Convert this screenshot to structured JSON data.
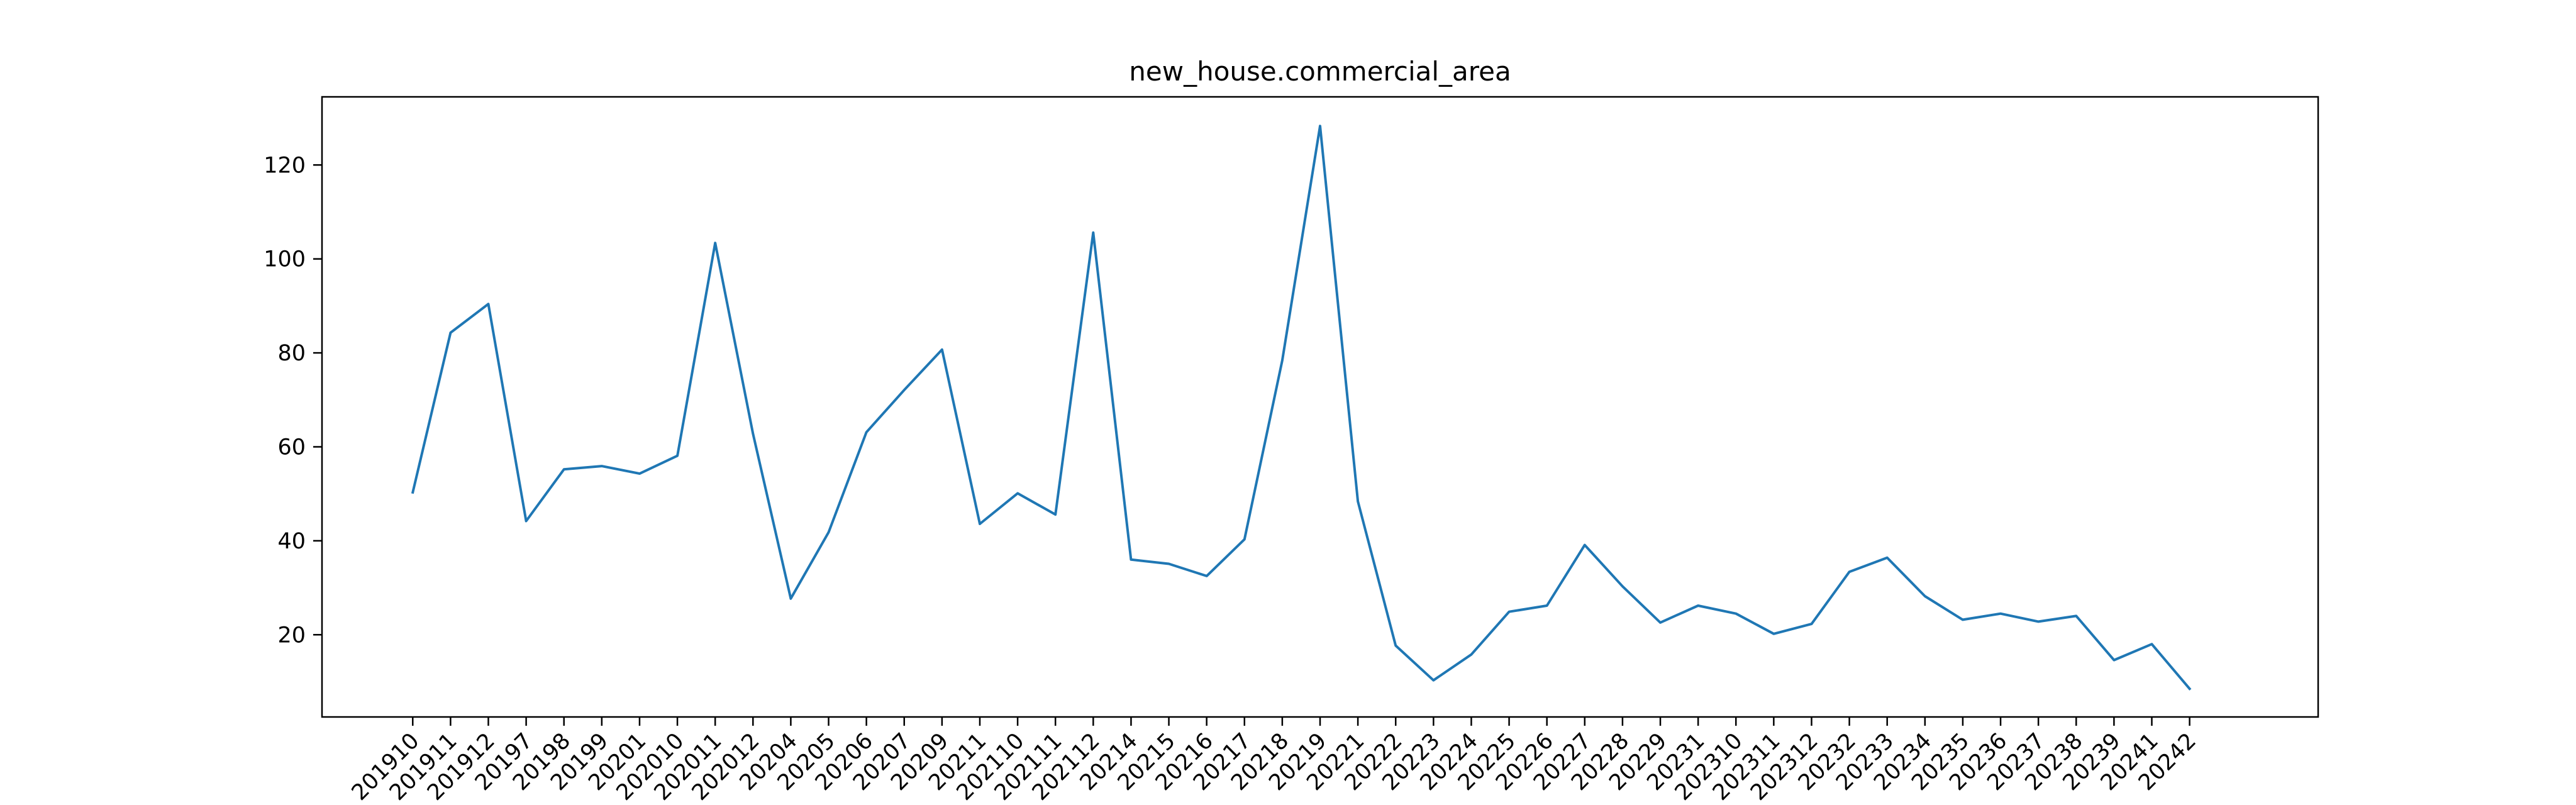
{
  "chart_data": {
    "type": "line",
    "title": "new_house.commercial_area",
    "xlabel": "",
    "ylabel": "",
    "categories": [
      "201910",
      "201911",
      "201912",
      "20197",
      "20198",
      "20199",
      "20201",
      "202010",
      "202011",
      "202012",
      "20204",
      "20205",
      "20206",
      "20207",
      "20209",
      "20211",
      "202110",
      "202111",
      "202112",
      "20214",
      "20215",
      "20216",
      "20217",
      "20218",
      "20219",
      "20221",
      "20222",
      "20223",
      "20224",
      "20225",
      "20226",
      "20227",
      "20228",
      "20229",
      "20231",
      "202310",
      "202311",
      "202312",
      "20232",
      "20233",
      "20234",
      "20235",
      "20236",
      "20237",
      "20238",
      "20239",
      "20241",
      "20242"
    ],
    "series": [
      {
        "values": [
          50.3,
          84.3,
          90.4,
          44.2,
          55.2,
          55.9,
          54.3,
          58.1,
          103.4,
          62.8,
          27.7,
          41.8,
          63.1,
          72.1,
          80.7,
          43.6,
          50.1,
          45.6,
          105.6,
          36.0,
          35.1,
          32.5,
          40.3,
          78.4,
          128.3,
          48.4,
          17.7,
          10.3,
          15.8,
          24.9,
          26.2,
          39.1,
          30.3,
          22.6,
          26.2,
          24.5,
          20.2,
          22.3,
          33.4,
          36.4,
          28.2,
          23.2,
          24.5,
          22.8,
          24.0,
          14.6,
          18.0,
          8.5
        ]
      }
    ],
    "yticks": [
      20,
      40,
      60,
      80,
      100,
      120
    ],
    "ylim": [
      2.5,
      134.5
    ],
    "xlim": [
      -2.4,
      50.4
    ],
    "grid": false,
    "legend": "none",
    "line_color": "#1f77b4"
  }
}
